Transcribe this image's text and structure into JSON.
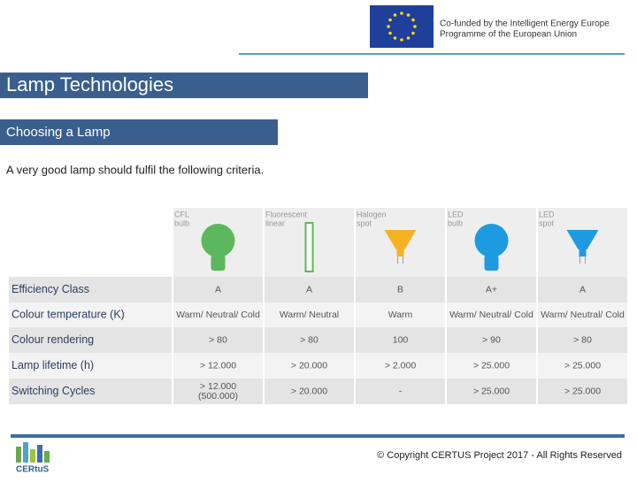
{
  "header": {
    "eu_lines": [
      "Co-funded by the Intelligent Energy Europe",
      "Programme of the European Union"
    ]
  },
  "title": "Lamp Technologies",
  "subtitle": "Choosing a Lamp",
  "intro": "A very good lamp should fulfil the following criteria.",
  "table": {
    "columns": [
      [
        "CFL",
        "bulb"
      ],
      [
        "Fluorescent",
        "linear"
      ],
      [
        "Halogen",
        "spot"
      ],
      [
        "LED",
        "bulb"
      ],
      [
        "LED",
        "spot"
      ]
    ],
    "rows": [
      {
        "label": "Efficiency Class",
        "cells": [
          [
            "A"
          ],
          [
            "A"
          ],
          [
            "B"
          ],
          [
            "A+"
          ],
          [
            "A"
          ]
        ]
      },
      {
        "label": "Colour temperature (K)",
        "cells": [
          [
            "Warm/ Neutral/ Cold"
          ],
          [
            "Warm/ Neutral"
          ],
          [
            "Warm"
          ],
          [
            "Warm/ Neutral/ Cold"
          ],
          [
            "Warm/ Neutral/ Cold"
          ]
        ]
      },
      {
        "label": "Colour rendering",
        "cells": [
          [
            "> 80"
          ],
          [
            "> 80"
          ],
          [
            "100"
          ],
          [
            "> 90"
          ],
          [
            "> 80"
          ]
        ]
      },
      {
        "label": "Lamp lifetime (h)",
        "cells": [
          [
            "> 12.000"
          ],
          [
            "> 20.000"
          ],
          [
            "> 2.000"
          ],
          [
            "> 25.000"
          ],
          [
            "> 25.000"
          ]
        ]
      },
      {
        "label": "Switching Cycles",
        "cells": [
          [
            "> 12.000",
            "(500.000)"
          ],
          [
            "> 20.000"
          ],
          [
            "-"
          ],
          [
            "> 25.000"
          ],
          [
            "> 25.000"
          ]
        ]
      }
    ]
  },
  "footer": {
    "logo": "CERtuS",
    "copyright": "© Copyright CERTUS Project 2017 - All Rights Reserved"
  }
}
